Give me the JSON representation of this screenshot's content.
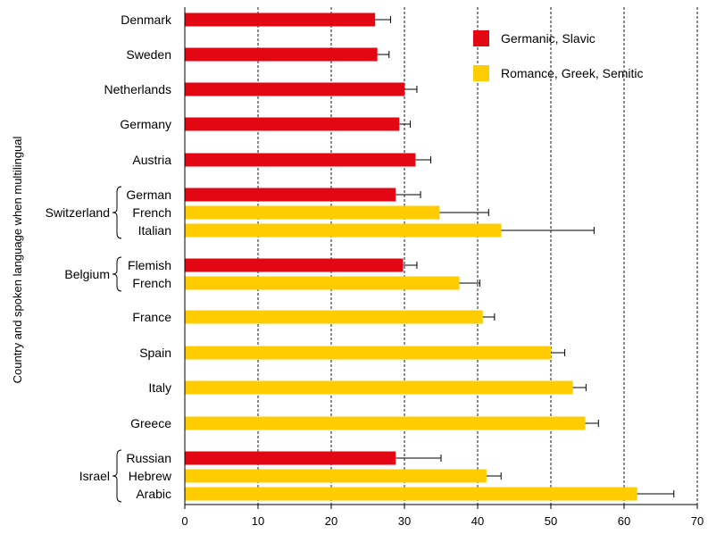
{
  "chart_data": {
    "type": "bar",
    "orientation": "horizontal",
    "title": "",
    "xlabel": "",
    "ylabel": "Country and spoken language when multilingual",
    "xlim": [
      0,
      70
    ],
    "xticks": [
      0,
      10,
      20,
      30,
      40,
      50,
      60,
      70
    ],
    "grid": "vertical dashed",
    "legend_position": "top-right",
    "series": [
      {
        "name": "Germanic, Slavic",
        "color": "#e30613"
      },
      {
        "name": "Romance, Greek, Semitic",
        "color": "#ffcc00"
      }
    ],
    "bars": [
      {
        "label": "Denmark",
        "group": "",
        "value": 26.0,
        "error": 2.1,
        "series": 0
      },
      {
        "label": "Sweden",
        "group": "",
        "value": 26.3,
        "error": 1.6,
        "series": 0
      },
      {
        "label": "Netherlands",
        "group": "",
        "value": 30.0,
        "error": 1.7,
        "series": 0
      },
      {
        "label": "Germany",
        "group": "",
        "value": 29.3,
        "error": 1.5,
        "series": 0
      },
      {
        "label": "Austria",
        "group": "",
        "value": 31.5,
        "error": 2.1,
        "series": 0
      },
      {
        "label": "German",
        "group": "Switzerland",
        "value": 28.8,
        "error": 3.4,
        "series": 0
      },
      {
        "label": "French",
        "group": "Switzerland",
        "value": 34.8,
        "error": 6.7,
        "series": 1
      },
      {
        "label": "Italian",
        "group": "Switzerland",
        "value": 43.2,
        "error": 12.7,
        "series": 1
      },
      {
        "label": "Flemish",
        "group": "Belgium",
        "value": 29.8,
        "error": 1.9,
        "series": 0
      },
      {
        "label": "French",
        "group": "Belgium",
        "value": 37.5,
        "error": 2.8,
        "series": 1
      },
      {
        "label": "France",
        "group": "",
        "value": 40.7,
        "error": 1.6,
        "series": 1
      },
      {
        "label": "Spain",
        "group": "",
        "value": 50.0,
        "error": 1.9,
        "series": 1
      },
      {
        "label": "Italy",
        "group": "",
        "value": 53.0,
        "error": 1.8,
        "series": 1
      },
      {
        "label": "Greece",
        "group": "",
        "value": 54.7,
        "error": 1.8,
        "series": 1
      },
      {
        "label": "Russian",
        "group": "Israel",
        "value": 28.8,
        "error": 6.2,
        "series": 0
      },
      {
        "label": "Hebrew",
        "group": "Israel",
        "value": 41.2,
        "error": 2.0,
        "series": 1
      },
      {
        "label": "Arabic",
        "group": "Israel",
        "value": 61.8,
        "error": 5.0,
        "series": 1
      }
    ],
    "groups": [
      {
        "name": "Switzerland"
      },
      {
        "name": "Belgium"
      },
      {
        "name": "Israel"
      }
    ]
  }
}
